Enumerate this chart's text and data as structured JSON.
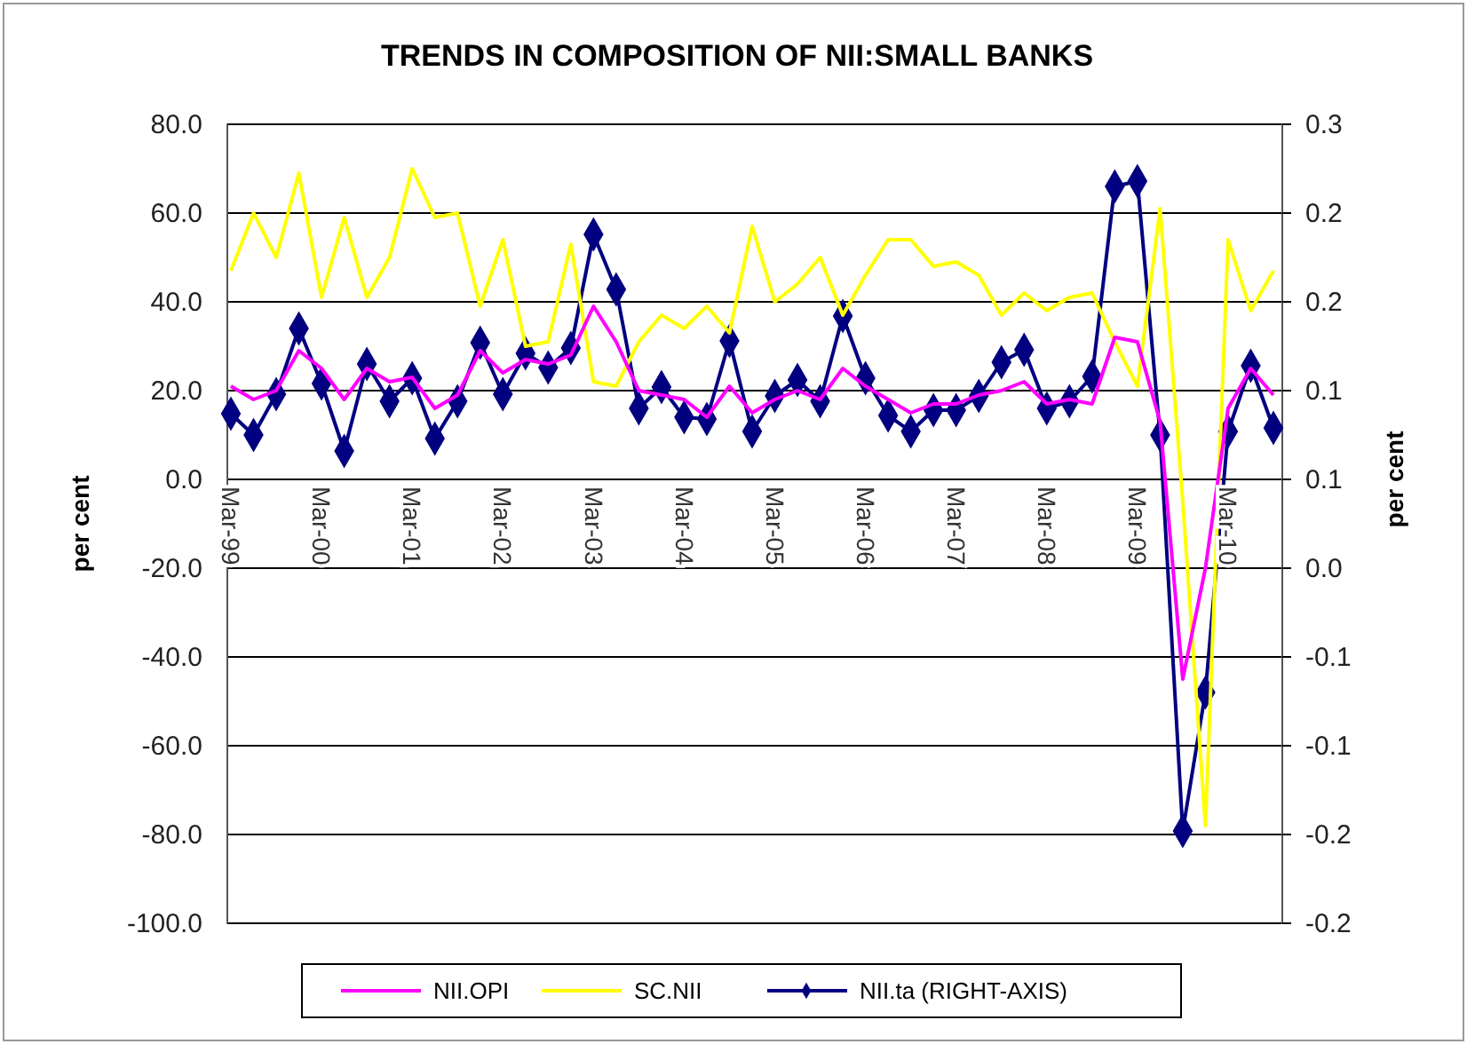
{
  "chart_data": {
    "type": "line",
    "title": "TRENDS IN COMPOSITION OF NII:SMALL  BANKS",
    "ylabel": "per cent",
    "y2label": "per cent",
    "categories": [
      "Mar-99",
      null,
      null,
      null,
      "Mar-00",
      null,
      null,
      null,
      "Mar-01",
      null,
      null,
      null,
      "Mar-02",
      null,
      null,
      null,
      "Mar-03",
      null,
      null,
      null,
      "Mar-04",
      null,
      null,
      null,
      "Mar-05",
      null,
      null,
      null,
      "Mar-06",
      null,
      null,
      null,
      "Mar-07",
      null,
      null,
      null,
      "Mar-08",
      null,
      null,
      null,
      "Mar-09",
      null,
      null,
      null,
      "Mar-10",
      null,
      null
    ],
    "ylim": [
      -100,
      80
    ],
    "yticks": [
      {
        "value": 80,
        "label": "80.0"
      },
      {
        "value": 60,
        "label": "60.0"
      },
      {
        "value": 40,
        "label": "40.0"
      },
      {
        "value": 20,
        "label": "20.0"
      },
      {
        "value": 0,
        "label": "0.0"
      },
      {
        "value": -20,
        "label": "-20.0"
      },
      {
        "value": -40,
        "label": "-40.0"
      },
      {
        "value": -60,
        "label": "-60.0"
      },
      {
        "value": -80,
        "label": "-80.0"
      },
      {
        "value": -100,
        "label": "-100.0"
      }
    ],
    "y2lim": [
      -0.2,
      0.25
    ],
    "y2ticks": [
      {
        "value": 0.25,
        "label": "0.3"
      },
      {
        "value": 0.2,
        "label": "0.2"
      },
      {
        "value": 0.15,
        "label": "0.2"
      },
      {
        "value": 0.1,
        "label": "0.1"
      },
      {
        "value": 0.05,
        "label": "0.1"
      },
      {
        "value": 0,
        "label": "0.0"
      },
      {
        "value": -0.05,
        "label": "-0.1"
      },
      {
        "value": -0.1,
        "label": "-0.1"
      },
      {
        "value": -0.15,
        "label": "-0.2"
      },
      {
        "value": -0.2,
        "label": "-0.2"
      }
    ],
    "grid": "y",
    "legend": "bottom",
    "line_style": "solid",
    "series": [
      {
        "name": "NII.OPI",
        "color": "#ff00ff",
        "marker": "none",
        "values": [
          21,
          18,
          20,
          29,
          25,
          18,
          25,
          22,
          23,
          16,
          19,
          29,
          24,
          27,
          26,
          28,
          39,
          31,
          20,
          19,
          18,
          14,
          21,
          15,
          18,
          20,
          18,
          25,
          21,
          18,
          15,
          17,
          17,
          19,
          20,
          22,
          17,
          18,
          17,
          32,
          31,
          13,
          -45,
          -20,
          16,
          25,
          19
        ]
      },
      {
        "name": "SC.NII",
        "color": "#ffff00",
        "marker": "none",
        "values": [
          47,
          60,
          50,
          69,
          41,
          59,
          41,
          50,
          70,
          59,
          60,
          39,
          54,
          30,
          31,
          53,
          22,
          21,
          31,
          37,
          34,
          39,
          33,
          57,
          40,
          44,
          50,
          37,
          46,
          54,
          54,
          48,
          49,
          46,
          37,
          42,
          38,
          41,
          42,
          31,
          21,
          61,
          -5,
          -78,
          54,
          38,
          47
        ]
      },
      {
        "name": "NII.ta (RIGHT-AXIS)",
        "color": "#000080",
        "marker": "diamond",
        "axis": "y2",
        "values": [
          0.087,
          0.075,
          0.098,
          0.135,
          0.104,
          0.066,
          0.115,
          0.094,
          0.107,
          0.073,
          0.094,
          0.127,
          0.098,
          0.121,
          0.113,
          0.124,
          0.188,
          0.157,
          0.09,
          0.102,
          0.085,
          0.084,
          0.128,
          0.077,
          0.097,
          0.106,
          0.094,
          0.142,
          0.107,
          0.086,
          0.077,
          0.089,
          0.089,
          0.097,
          0.116,
          0.123,
          0.09,
          0.094,
          0.108,
          0.215,
          0.218,
          0.075,
          -0.148,
          -0.07,
          0.077,
          0.114,
          0.079
        ]
      }
    ]
  }
}
